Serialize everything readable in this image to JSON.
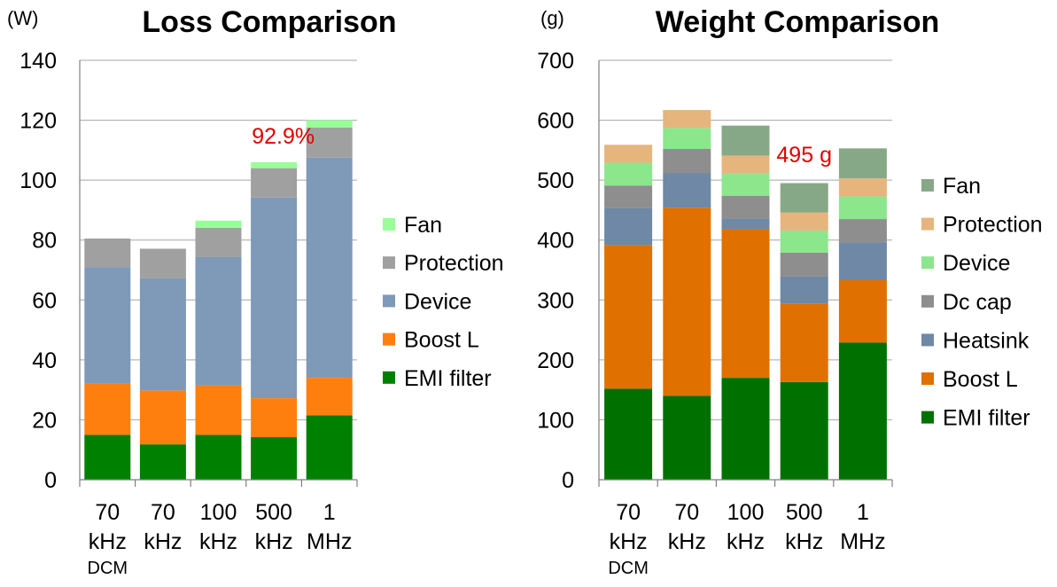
{
  "chart_data": [
    {
      "type": "bar",
      "stacked": true,
      "title": "Loss Comparison",
      "unit": "(W)",
      "categories": [
        [
          "70",
          "kHz"
        ],
        [
          "70",
          "kHz"
        ],
        [
          "100",
          "kHz"
        ],
        [
          "500",
          "kHz"
        ],
        [
          "1",
          "MHz"
        ]
      ],
      "sub_label": "DCM",
      "ylim": [
        0,
        140
      ],
      "yticks": [
        0,
        20,
        40,
        60,
        80,
        100,
        120,
        140
      ],
      "grid": true,
      "legend_position": "right",
      "series": [
        {
          "name": "EMI filter",
          "color": "#008000",
          "values": [
            15,
            11.8,
            15,
            14.2,
            21.5
          ]
        },
        {
          "name": "Boost L",
          "color": "#ff7f0e",
          "values": [
            17,
            18,
            16.5,
            13,
            12.5
          ]
        },
        {
          "name": "Device",
          "color": "#7f99b8",
          "values": [
            39,
            37.5,
            42.8,
            67,
            73.5
          ]
        },
        {
          "name": "Protection",
          "color": "#a0a0a0",
          "values": [
            9.5,
            9.8,
            9.8,
            9.8,
            10.1
          ]
        },
        {
          "name": "Fan",
          "color": "#99ff99",
          "values": [
            0,
            0,
            2.4,
            2,
            2.4
          ]
        }
      ],
      "annotation": {
        "text": "92.9%",
        "category_index": 4
      }
    },
    {
      "type": "bar",
      "stacked": true,
      "title": "Weight Comparison",
      "unit": "(g)",
      "categories": [
        [
          "70",
          "kHz"
        ],
        [
          "70",
          "kHz"
        ],
        [
          "100",
          "kHz"
        ],
        [
          "500",
          "kHz"
        ],
        [
          "1",
          "MHz"
        ]
      ],
      "sub_label": "DCM",
      "ylim": [
        0,
        700
      ],
      "yticks": [
        0,
        100,
        200,
        300,
        400,
        500,
        600,
        700
      ],
      "grid": true,
      "legend_position": "right",
      "series": [
        {
          "name": "EMI filter",
          "color": "#007000",
          "values": [
            152,
            140,
            170,
            163,
            229
          ]
        },
        {
          "name": "Boost L",
          "color": "#e07000",
          "values": [
            240,
            314,
            248,
            131,
            104
          ]
        },
        {
          "name": "Heatsink",
          "color": "#6e88a6",
          "values": [
            61,
            58,
            18,
            45,
            63
          ]
        },
        {
          "name": "Dc cap",
          "color": "#8e8e8e",
          "values": [
            38,
            40,
            38,
            40,
            39
          ]
        },
        {
          "name": "Device",
          "color": "#8ce68c",
          "values": [
            38,
            35,
            38,
            37,
            38
          ]
        },
        {
          "name": "Protection",
          "color": "#e6b47d",
          "values": [
            30,
            30,
            29,
            30,
            30
          ]
        },
        {
          "name": "Fan",
          "color": "#86a886",
          "values": [
            0,
            0,
            50,
            49,
            50
          ]
        }
      ],
      "annotation": {
        "text": "495 g",
        "category_index": 3
      }
    }
  ]
}
